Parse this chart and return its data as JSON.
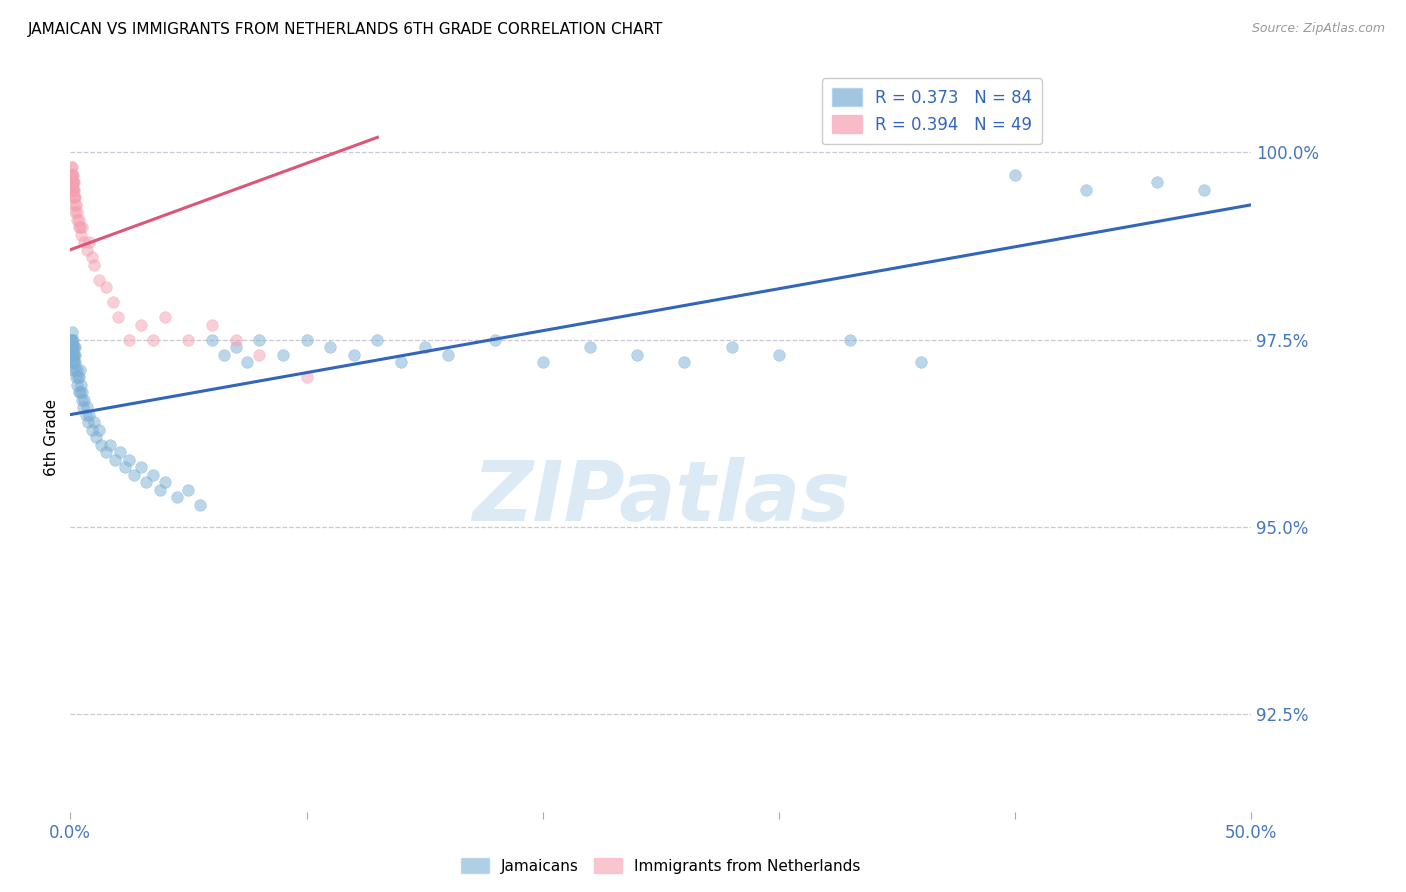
{
  "title": "JAMAICAN VS IMMIGRANTS FROM NETHERLANDS 6TH GRADE CORRELATION CHART",
  "source": "Source: ZipAtlas.com",
  "ylabel": "6th Grade",
  "ytick_values": [
    92.5,
    95.0,
    97.5,
    100.0
  ],
  "xlim": [
    0.0,
    50.0
  ],
  "ylim": [
    91.2,
    101.2
  ],
  "blue_color": "#7BAFD4",
  "pink_color": "#F4A0B0",
  "blue_line_color": "#3366BB",
  "pink_line_color": "#DD5577",
  "legend_blue_R": "R = 0.373",
  "legend_blue_N": "N = 84",
  "legend_pink_R": "R = 0.394",
  "legend_pink_N": "N = 49",
  "watermark_text": "ZIPatlas",
  "blue_scatter_x": [
    0.05,
    0.06,
    0.07,
    0.08,
    0.09,
    0.1,
    0.1,
    0.11,
    0.12,
    0.13,
    0.15,
    0.17,
    0.18,
    0.2,
    0.22,
    0.25,
    0.28,
    0.3,
    0.32,
    0.35,
    0.38,
    0.4,
    0.42,
    0.45,
    0.48,
    0.5,
    0.55,
    0.6,
    0.65,
    0.7,
    0.75,
    0.8,
    0.9,
    1.0,
    1.1,
    1.2,
    1.3,
    1.5,
    1.7,
    1.9,
    2.1,
    2.3,
    2.5,
    2.7,
    3.0,
    3.2,
    3.5,
    3.8,
    4.0,
    4.5,
    5.0,
    5.5,
    6.0,
    6.5,
    7.0,
    7.5,
    8.0,
    9.0,
    10.0,
    11.0,
    12.0,
    13.0,
    14.0,
    15.0,
    16.0,
    18.0,
    20.0,
    22.0,
    24.0,
    26.0,
    28.0,
    30.0,
    33.0,
    36.0,
    40.0,
    43.0,
    46.0,
    48.0,
    0.05,
    0.08,
    0.1,
    0.12,
    0.15,
    0.18
  ],
  "blue_scatter_y": [
    97.5,
    97.4,
    97.6,
    97.3,
    97.5,
    97.4,
    97.2,
    97.3,
    97.5,
    97.1,
    97.3,
    97.2,
    97.4,
    97.1,
    97.2,
    97.0,
    97.1,
    96.9,
    97.0,
    96.8,
    97.0,
    96.8,
    97.1,
    96.9,
    96.7,
    96.8,
    96.6,
    96.7,
    96.5,
    96.6,
    96.4,
    96.5,
    96.3,
    96.4,
    96.2,
    96.3,
    96.1,
    96.0,
    96.1,
    95.9,
    96.0,
    95.8,
    95.9,
    95.7,
    95.8,
    95.6,
    95.7,
    95.5,
    95.6,
    95.4,
    95.5,
    95.3,
    97.5,
    97.3,
    97.4,
    97.2,
    97.5,
    97.3,
    97.5,
    97.4,
    97.3,
    97.5,
    97.2,
    97.4,
    97.3,
    97.5,
    97.2,
    97.4,
    97.3,
    97.2,
    97.4,
    97.3,
    97.5,
    97.2,
    99.7,
    99.5,
    99.6,
    99.5,
    97.5,
    97.4,
    97.3,
    97.2,
    97.4,
    97.3
  ],
  "pink_scatter_x": [
    0.03,
    0.04,
    0.05,
    0.05,
    0.06,
    0.06,
    0.07,
    0.07,
    0.08,
    0.08,
    0.09,
    0.1,
    0.1,
    0.11,
    0.12,
    0.13,
    0.14,
    0.15,
    0.16,
    0.17,
    0.18,
    0.2,
    0.22,
    0.25,
    0.28,
    0.3,
    0.35,
    0.38,
    0.4,
    0.45,
    0.5,
    0.6,
    0.7,
    0.8,
    0.9,
    1.0,
    1.2,
    1.5,
    1.8,
    2.0,
    2.5,
    3.0,
    3.5,
    4.0,
    5.0,
    6.0,
    7.0,
    8.0,
    10.0
  ],
  "pink_scatter_y": [
    99.6,
    99.7,
    99.8,
    99.5,
    99.6,
    99.7,
    99.8,
    99.5,
    99.6,
    99.7,
    99.5,
    99.6,
    99.7,
    99.5,
    99.6,
    99.5,
    99.4,
    99.5,
    99.6,
    99.4,
    99.3,
    99.4,
    99.2,
    99.3,
    99.1,
    99.2,
    99.0,
    99.1,
    99.0,
    98.9,
    99.0,
    98.8,
    98.7,
    98.8,
    98.6,
    98.5,
    98.3,
    98.2,
    98.0,
    97.8,
    97.5,
    97.7,
    97.5,
    97.8,
    97.5,
    97.7,
    97.5,
    97.3,
    97.0
  ],
  "blue_trendline_x": [
    0.0,
    50.0
  ],
  "blue_trendline_y": [
    96.5,
    99.3
  ],
  "pink_trendline_x": [
    0.0,
    13.0
  ],
  "pink_trendline_y": [
    98.7,
    100.2
  ],
  "marker_size": 70,
  "axis_tick_color": "#4477BB",
  "grid_color": "#BBBBCC",
  "axis_label_color": "#000000"
}
